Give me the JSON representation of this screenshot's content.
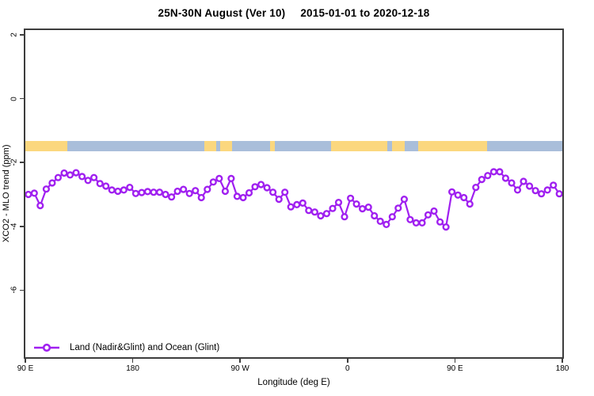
{
  "colors": {
    "series": "#A020F0",
    "land": "#FBD77E",
    "ocean": "#A9BEDA",
    "axis": "#3d3d3d",
    "text": "#000000"
  },
  "chart_data": {
    "type": "line",
    "title_left": "25N-30N August (Ver 10)",
    "title_right": "2015-01-01 to 2020-12-18",
    "xlabel": "Longitude (deg E)",
    "ylabel": "XCO2 - MLO trend (ppm)",
    "xlim": [
      90,
      540
    ],
    "ylim": [
      -8.1,
      2.15
    ],
    "grid": false,
    "x_ticks": [
      {
        "x": 90,
        "label": "90 E"
      },
      {
        "x": 180,
        "label": "180"
      },
      {
        "x": 270,
        "label": "90 W"
      },
      {
        "x": 360,
        "label": "0"
      },
      {
        "x": 450,
        "label": "90 E"
      },
      {
        "x": 540,
        "label": "180"
      }
    ],
    "y_ticks": [
      {
        "y": 2,
        "label": "2"
      },
      {
        "y": 0,
        "label": "0"
      },
      {
        "y": -2,
        "label": "-2"
      },
      {
        "y": -4,
        "label": "-4"
      },
      {
        "y": -6,
        "label": "-6"
      }
    ],
    "legend": {
      "position": "bottom-left",
      "entries": [
        "Land (Nadir&Glint) and Ocean (Glint)"
      ]
    },
    "map_strip": {
      "description": "land-ocean-longitude-strip",
      "y_top": -1.33,
      "y_bottom": -1.65,
      "segments": [
        {
          "type": "land",
          "from_lon": 90,
          "to_lon": 125
        },
        {
          "type": "ocean",
          "from_lon": 125,
          "to_lon": 240
        },
        {
          "type": "land",
          "from_lon": 240,
          "to_lon": 250
        },
        {
          "type": "ocean",
          "from_lon": 250,
          "to_lon": 253
        },
        {
          "type": "land",
          "from_lon": 253,
          "to_lon": 263
        },
        {
          "type": "ocean",
          "from_lon": 263,
          "to_lon": 295
        },
        {
          "type": "land",
          "from_lon": 295,
          "to_lon": 299
        },
        {
          "type": "ocean",
          "from_lon": 299,
          "to_lon": 346
        },
        {
          "type": "land",
          "from_lon": 346,
          "to_lon": 393
        },
        {
          "type": "ocean",
          "from_lon": 393,
          "to_lon": 397
        },
        {
          "type": "land",
          "from_lon": 397,
          "to_lon": 408
        },
        {
          "type": "ocean",
          "from_lon": 408,
          "to_lon": 419
        },
        {
          "type": "land",
          "from_lon": 419,
          "to_lon": 477
        },
        {
          "type": "ocean",
          "from_lon": 477,
          "to_lon": 540
        }
      ]
    },
    "series": [
      {
        "name": "Land (Nadir&Glint) and Ocean (Glint)",
        "marker": "open-circle",
        "x": [
          92.5,
          97.5,
          102.5,
          107.5,
          112.5,
          117.5,
          122.5,
          127.5,
          132.5,
          137.5,
          142.5,
          147.5,
          152.5,
          157.5,
          162.5,
          167.5,
          172.5,
          177.5,
          182.5,
          187.5,
          192.5,
          197.5,
          202.5,
          207.5,
          212.5,
          217.5,
          222.5,
          227.5,
          232.5,
          237.5,
          242.5,
          247.5,
          252.5,
          257.5,
          262.5,
          267.5,
          272.5,
          277.5,
          282.5,
          287.5,
          292.5,
          297.5,
          302.5,
          307.5,
          312.5,
          317.5,
          322.5,
          327.5,
          332.5,
          337.5,
          342.5,
          347.5,
          352.5,
          357.5,
          362.5,
          367.5,
          372.5,
          377.5,
          382.5,
          387.5,
          392.5,
          397.5,
          402.5,
          407.5,
          412.5,
          417.5,
          422.5,
          427.5,
          432.5,
          437.5,
          442.5,
          447.5,
          452.5,
          457.5,
          462.5,
          467.5,
          472.5,
          477.5,
          482.5,
          487.5,
          492.5,
          497.5,
          502.5,
          507.5,
          512.5,
          517.5,
          522.5,
          527.5,
          532.5,
          537.5
        ],
        "values": [
          -3.0,
          -2.96,
          -3.35,
          -2.83,
          -2.64,
          -2.47,
          -2.33,
          -2.39,
          -2.32,
          -2.44,
          -2.56,
          -2.47,
          -2.66,
          -2.74,
          -2.86,
          -2.9,
          -2.86,
          -2.78,
          -2.97,
          -2.94,
          -2.91,
          -2.93,
          -2.93,
          -3.0,
          -3.08,
          -2.9,
          -2.84,
          -2.97,
          -2.88,
          -3.1,
          -2.84,
          -2.61,
          -2.5,
          -2.9,
          -2.5,
          -3.06,
          -3.1,
          -2.95,
          -2.76,
          -2.69,
          -2.79,
          -2.93,
          -3.15,
          -2.93,
          -3.39,
          -3.32,
          -3.27,
          -3.5,
          -3.55,
          -3.67,
          -3.6,
          -3.44,
          -3.25,
          -3.7,
          -3.12,
          -3.3,
          -3.45,
          -3.4,
          -3.67,
          -3.84,
          -3.94,
          -3.7,
          -3.43,
          -3.15,
          -3.79,
          -3.89,
          -3.89,
          -3.64,
          -3.52,
          -3.86,
          -4.02,
          -2.92,
          -3.02,
          -3.1,
          -3.3,
          -2.78,
          -2.53,
          -2.41,
          -2.29,
          -2.29,
          -2.49,
          -2.64,
          -2.86,
          -2.59,
          -2.74,
          -2.88,
          -2.98,
          -2.86,
          -2.71,
          -2.98
        ]
      }
    ]
  }
}
